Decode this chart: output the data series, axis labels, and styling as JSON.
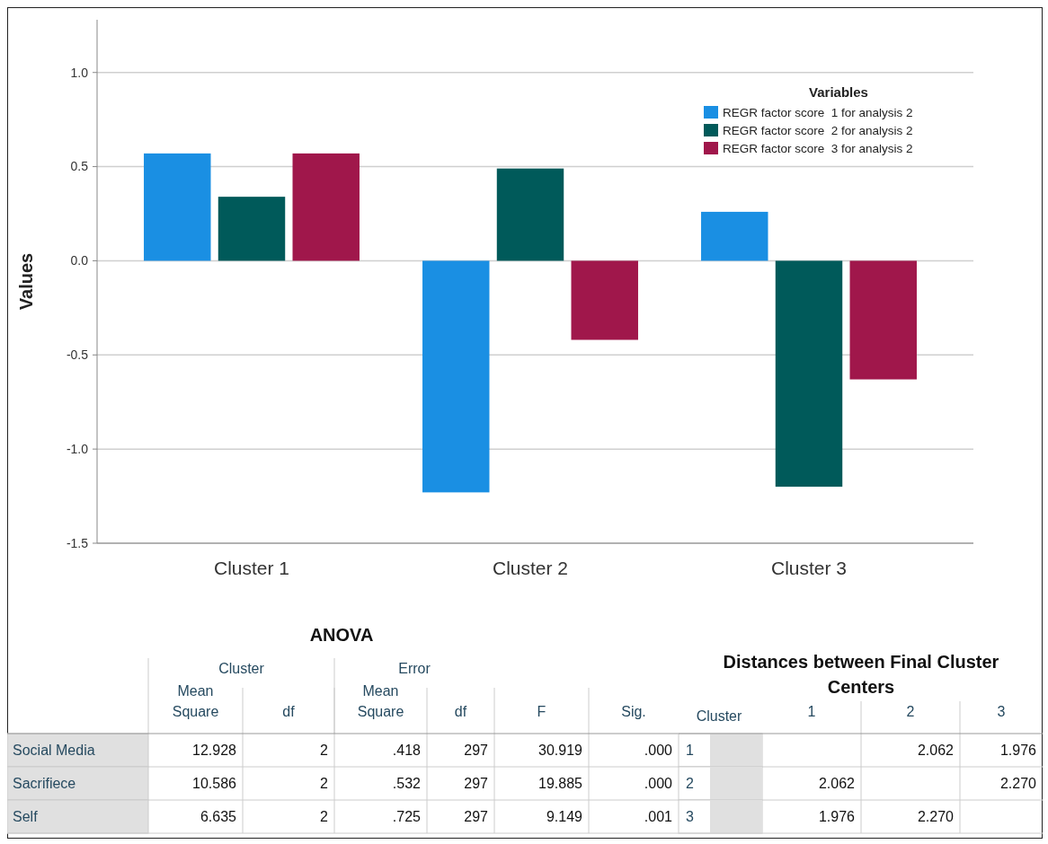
{
  "chart_data": [
    {
      "type": "bar",
      "ylabel": "Values",
      "categories": [
        "Cluster 1",
        "Cluster 2",
        "Cluster 3"
      ],
      "legend_title": "Variables",
      "legend": "top right",
      "grid": "y",
      "ylim": [
        -1.5,
        1.28
      ],
      "yticks": [
        {
          "value": -1.5,
          "label": "-1.5"
        },
        {
          "value": -1,
          "label": "-1.0"
        },
        {
          "value": -0.5,
          "label": "-0.5"
        },
        {
          "value": 0,
          "label": "0.0"
        },
        {
          "value": 0.5,
          "label": "0.5"
        },
        {
          "value": 1,
          "label": "1.0"
        }
      ],
      "series": [
        {
          "name": "REGR factor score  1 for analysis 2",
          "color": "#1a8fe3",
          "values": [
            0.57,
            -1.23,
            0.26
          ]
        },
        {
          "name": "REGR factor score  2 for analysis 2",
          "color": "#005a5a",
          "values": [
            0.34,
            0.49,
            -1.2
          ]
        },
        {
          "name": "REGR factor score  3 for analysis 2",
          "color": "#a0174b",
          "values": [
            0.57,
            -0.42,
            -0.63
          ]
        }
      ]
    },
    {
      "type": "other",
      "title": "ANOVA",
      "annotations": [
        "Cluster",
        "Error"
      ],
      "categories": [
        "Mean Square",
        "df",
        "Mean Square",
        "df",
        "F",
        "Sig."
      ],
      "y_categories": [
        "Social Media",
        "Sacrifiece",
        "Self"
      ],
      "cell_labels": [
        [
          "12.928",
          "2",
          ".418",
          "297",
          "30.919",
          ".000"
        ],
        [
          "10.586",
          "2",
          ".532",
          "297",
          "19.885",
          ".000"
        ],
        [
          "6.635",
          "2",
          ".725",
          "297",
          "9.149",
          ".001"
        ]
      ]
    },
    {
      "type": "other",
      "title": "Distances between Final Cluster Centers",
      "ylabel": "Cluster",
      "categories": [
        "1",
        "2",
        "3"
      ],
      "y_categories": [
        "1",
        "2",
        "3"
      ],
      "cell_labels": [
        [
          null,
          "2.062",
          "1.976"
        ],
        [
          "2.062",
          null,
          "2.270"
        ],
        [
          "1.976",
          "2.270",
          null
        ]
      ]
    }
  ]
}
